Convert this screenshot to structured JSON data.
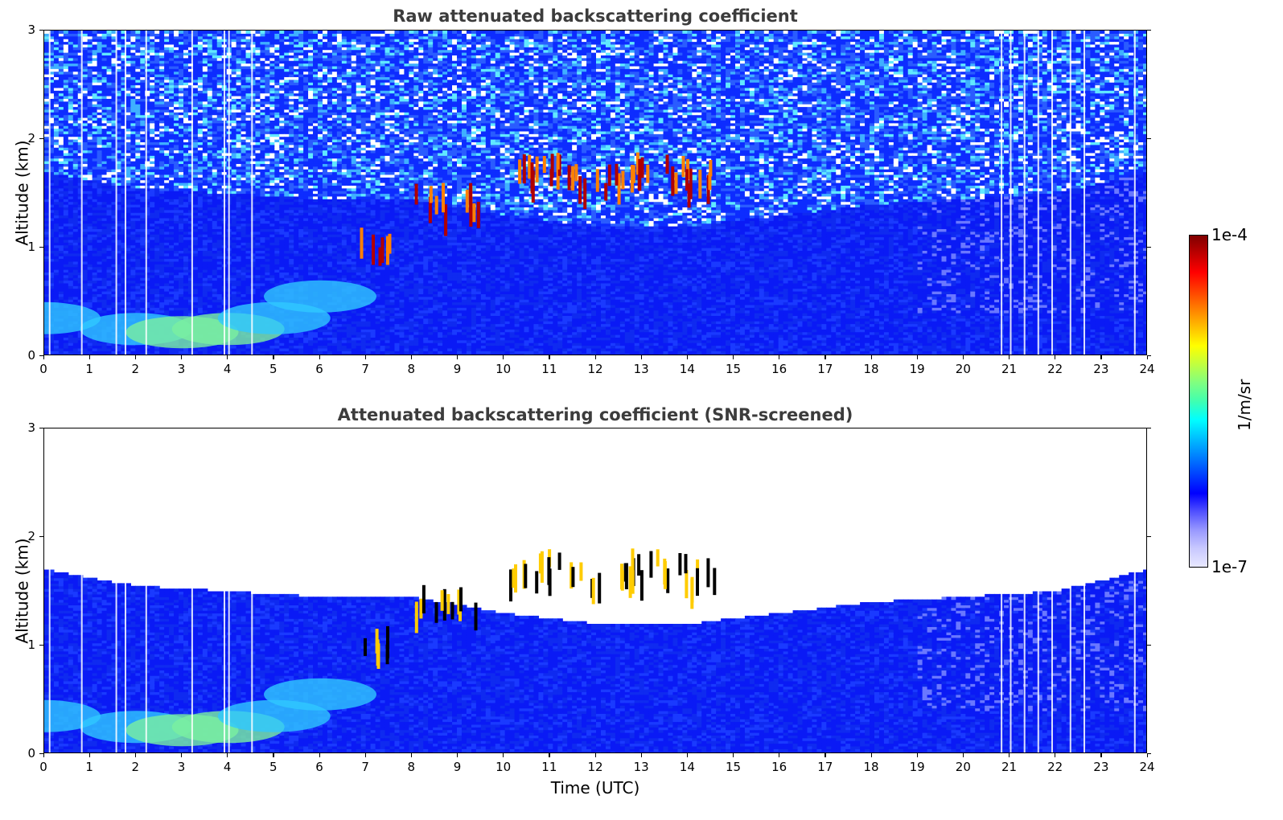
{
  "chart_data": [
    {
      "type": "heatmap",
      "title": "Raw attenuated backscattering coefficient",
      "ylabel": "Altitude (km)",
      "xlabel": "",
      "xlim": [
        0,
        24
      ],
      "ylim": [
        0,
        3
      ],
      "xticks": [
        "0",
        "1",
        "2",
        "3",
        "4",
        "5",
        "6",
        "7",
        "8",
        "9",
        "10",
        "11",
        "12",
        "13",
        "14",
        "15",
        "16",
        "17",
        "18",
        "19",
        "20",
        "21",
        "22",
        "23",
        "24"
      ],
      "yticks": [
        "0",
        "1",
        "2",
        "3"
      ],
      "features": {
        "boundary_layer_top_km": [
          [
            0,
            1.7
          ],
          [
            2,
            1.55
          ],
          [
            4,
            1.5
          ],
          [
            6,
            1.45
          ],
          [
            8,
            1.45
          ],
          [
            10,
            1.3
          ],
          [
            12,
            1.2
          ],
          [
            14,
            1.2
          ],
          [
            16,
            1.3
          ],
          [
            18,
            1.4
          ],
          [
            20,
            1.45
          ],
          [
            22,
            1.5
          ],
          [
            24,
            1.7
          ]
        ],
        "aerosol_layer_km": [
          [
            0,
            0.35
          ],
          [
            2,
            0.25
          ],
          [
            3,
            0.22
          ],
          [
            4,
            0.25
          ],
          [
            5,
            0.35
          ],
          [
            6,
            0.55
          ]
        ],
        "clouds": [
          [
            7.2,
            1.1
          ],
          [
            8.4,
            1.5
          ],
          [
            9.1,
            1.5
          ],
          [
            10.4,
            1.75
          ],
          [
            11,
            1.8
          ],
          [
            11.7,
            1.7
          ],
          [
            12.5,
            1.7
          ],
          [
            13.1,
            1.8
          ],
          [
            13.8,
            1.75
          ],
          [
            14.2,
            1.7
          ]
        ]
      }
    },
    {
      "type": "heatmap",
      "title": "Attenuated backscattering coefficient (SNR-screened)",
      "ylabel": "Altitude (km)",
      "xlabel": "Time (UTC)",
      "xlim": [
        0,
        24
      ],
      "ylim": [
        0,
        3
      ],
      "xticks": [
        "0",
        "1",
        "2",
        "3",
        "4",
        "5",
        "6",
        "7",
        "8",
        "9",
        "10",
        "11",
        "12",
        "13",
        "14",
        "15",
        "16",
        "17",
        "18",
        "19",
        "20",
        "21",
        "22",
        "23",
        "24"
      ],
      "yticks": [
        "0",
        "1",
        "2",
        "3"
      ]
    }
  ],
  "colorbar": {
    "max_label": "1e-4",
    "min_label": "1e-7",
    "unit": "1/m/sr",
    "colors": [
      "#e8e8ff",
      "#c8c8ff",
      "#9898ff",
      "#5050ff",
      "#0000ff",
      "#0040ff",
      "#0080ff",
      "#00c0ff",
      "#00ffff",
      "#40ffb0",
      "#80ff80",
      "#c0ff40",
      "#ffff00",
      "#ffc000",
      "#ff8000",
      "#ff4000",
      "#ff0000",
      "#c00000",
      "#800000"
    ]
  }
}
